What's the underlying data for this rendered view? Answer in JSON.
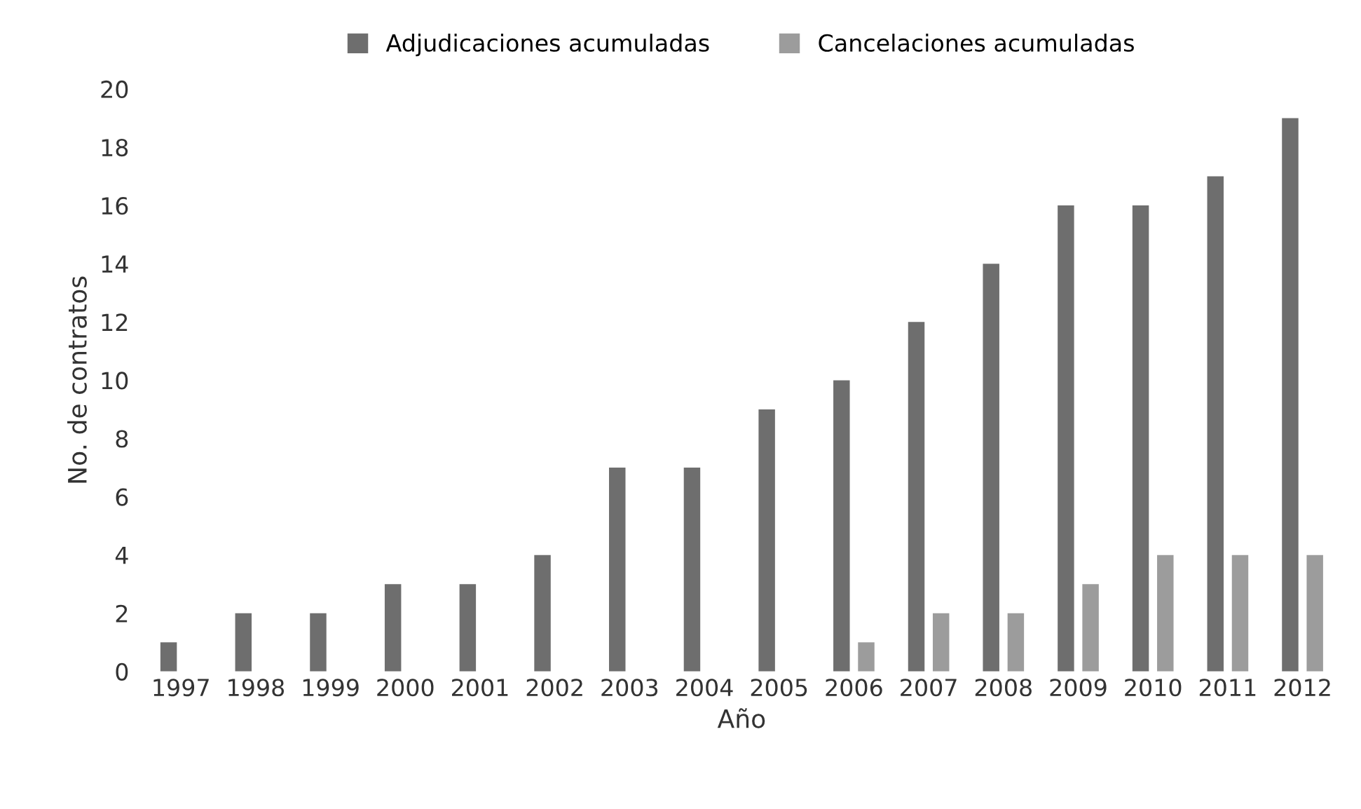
{
  "chart_data": {
    "type": "bar",
    "xlabel": "Año",
    "ylabel": "No. de contratos",
    "categories": [
      "1997",
      "1998",
      "1999",
      "2000",
      "2001",
      "2002",
      "2003",
      "2004",
      "2005",
      "2006",
      "2007",
      "2008",
      "2009",
      "2010",
      "2011",
      "2012"
    ],
    "series": [
      {
        "name": "Adjudicaciones acumuladas",
        "color": "#6e6e6e",
        "values": [
          1,
          2,
          2,
          3,
          3,
          4,
          7,
          7,
          9,
          10,
          12,
          14,
          16,
          16,
          17,
          19
        ]
      },
      {
        "name": "Cancelaciones acumuladas",
        "color": "#9c9c9c",
        "values": [
          0,
          0,
          0,
          0,
          0,
          0,
          0,
          0,
          0,
          1,
          2,
          2,
          3,
          4,
          4,
          4
        ]
      }
    ],
    "ylim": [
      0,
      20
    ],
    "yticks": [
      0,
      2,
      4,
      6,
      8,
      10,
      12,
      14,
      16,
      18,
      20
    ],
    "legend": "top",
    "grid": false
  }
}
